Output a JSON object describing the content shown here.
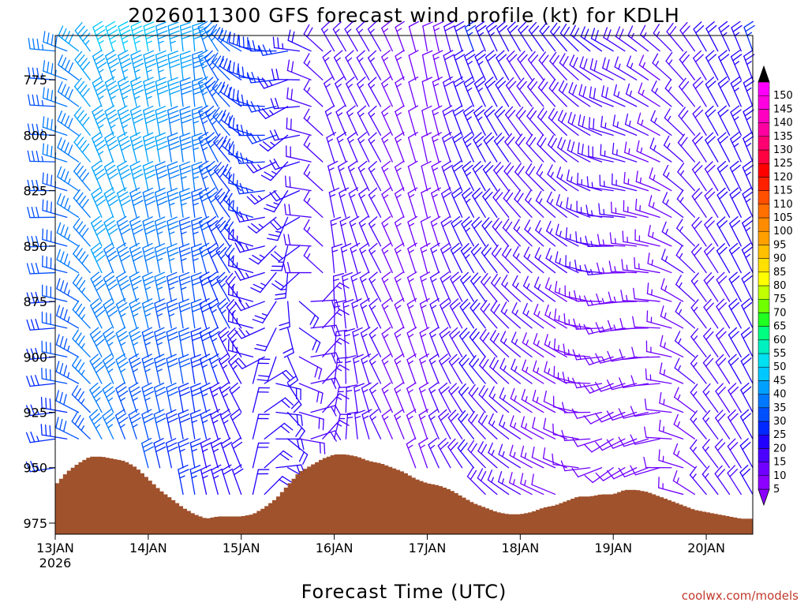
{
  "chart_data": {
    "type": "wind-barb-profile",
    "title": "2026011300 GFS forecast wind profile (kt) for KDLH",
    "xlabel": "Forecast Time (UTC)",
    "ylabel": "",
    "credit": "coolwx.com/models",
    "x_ticks": [
      {
        "label": "13JAN",
        "sub": "2026",
        "t": 0
      },
      {
        "label": "14JAN",
        "sub": "",
        "t": 24
      },
      {
        "label": "15JAN",
        "sub": "",
        "t": 48
      },
      {
        "label": "16JAN",
        "sub": "",
        "t": 72
      },
      {
        "label": "17JAN",
        "sub": "",
        "t": 96
      },
      {
        "label": "18JAN",
        "sub": "",
        "t": 120
      },
      {
        "label": "19JAN",
        "sub": "",
        "t": 144
      },
      {
        "label": "20JAN",
        "sub": "",
        "t": 168
      }
    ],
    "xlim_hours": [
      0,
      180
    ],
    "y_ticks": [
      775,
      800,
      825,
      850,
      875,
      900,
      925,
      950,
      975
    ],
    "ylim_hpa": [
      755,
      980
    ],
    "barb_levels_hpa": [
      762,
      775,
      787,
      800,
      812,
      825,
      837,
      850,
      862,
      875,
      887,
      900,
      912,
      925,
      937,
      950,
      962
    ],
    "time_step_hours": 3,
    "colorbar": {
      "levels": [
        5,
        10,
        15,
        20,
        25,
        30,
        35,
        40,
        45,
        50,
        55,
        60,
        65,
        70,
        75,
        80,
        85,
        90,
        95,
        100,
        105,
        110,
        115,
        120,
        125,
        130,
        135,
        140,
        145,
        150
      ],
      "colors": [
        "#8b00ff",
        "#7000ff",
        "#4b00ff",
        "#2200ff",
        "#0028ff",
        "#0050ff",
        "#0078ff",
        "#00a0ff",
        "#00c8ff",
        "#00e0f0",
        "#00f0c0",
        "#00ff80",
        "#20ff20",
        "#70ff00",
        "#c0ff00",
        "#ffff00",
        "#ffe000",
        "#ffc000",
        "#ffa000",
        "#ff8c00",
        "#ff7000",
        "#ff5000",
        "#ff2000",
        "#ff0000",
        "#ff0040",
        "#ff0070",
        "#ff00a0",
        "#ff00c0",
        "#ff00e0",
        "#ff00ff"
      ],
      "cap_colors": [
        "#8b00ff",
        "#000000"
      ]
    },
    "terrain_color": "#a0522d",
    "surface_pressure": [
      {
        "t": 0,
        "p": 958
      },
      {
        "t": 3,
        "p": 952
      },
      {
        "t": 6,
        "p": 948
      },
      {
        "t": 9,
        "p": 945
      },
      {
        "t": 12,
        "p": 945
      },
      {
        "t": 15,
        "p": 946
      },
      {
        "t": 18,
        "p": 947
      },
      {
        "t": 21,
        "p": 950
      },
      {
        "t": 24,
        "p": 955
      },
      {
        "t": 27,
        "p": 960
      },
      {
        "t": 30,
        "p": 964
      },
      {
        "t": 33,
        "p": 968
      },
      {
        "t": 36,
        "p": 971
      },
      {
        "t": 39,
        "p": 973
      },
      {
        "t": 42,
        "p": 972
      },
      {
        "t": 45,
        "p": 972
      },
      {
        "t": 48,
        "p": 972
      },
      {
        "t": 51,
        "p": 971
      },
      {
        "t": 54,
        "p": 968
      },
      {
        "t": 57,
        "p": 964
      },
      {
        "t": 60,
        "p": 958
      },
      {
        "t": 63,
        "p": 952
      },
      {
        "t": 66,
        "p": 949
      },
      {
        "t": 69,
        "p": 946
      },
      {
        "t": 72,
        "p": 944
      },
      {
        "t": 75,
        "p": 944
      },
      {
        "t": 78,
        "p": 945
      },
      {
        "t": 81,
        "p": 947
      },
      {
        "t": 84,
        "p": 948
      },
      {
        "t": 87,
        "p": 950
      },
      {
        "t": 90,
        "p": 952
      },
      {
        "t": 93,
        "p": 955
      },
      {
        "t": 96,
        "p": 957
      },
      {
        "t": 99,
        "p": 958
      },
      {
        "t": 102,
        "p": 960
      },
      {
        "t": 105,
        "p": 963
      },
      {
        "t": 108,
        "p": 966
      },
      {
        "t": 111,
        "p": 968
      },
      {
        "t": 114,
        "p": 970
      },
      {
        "t": 117,
        "p": 971
      },
      {
        "t": 120,
        "p": 971
      },
      {
        "t": 123,
        "p": 970
      },
      {
        "t": 126,
        "p": 968
      },
      {
        "t": 129,
        "p": 967
      },
      {
        "t": 132,
        "p": 965
      },
      {
        "t": 135,
        "p": 963
      },
      {
        "t": 138,
        "p": 963
      },
      {
        "t": 141,
        "p": 962
      },
      {
        "t": 144,
        "p": 962
      },
      {
        "t": 147,
        "p": 960
      },
      {
        "t": 150,
        "p": 960
      },
      {
        "t": 153,
        "p": 961
      },
      {
        "t": 156,
        "p": 963
      },
      {
        "t": 159,
        "p": 965
      },
      {
        "t": 162,
        "p": 967
      },
      {
        "t": 165,
        "p": 969
      },
      {
        "t": 168,
        "p": 970
      },
      {
        "t": 171,
        "p": 971
      },
      {
        "t": 174,
        "p": 972
      },
      {
        "t": 177,
        "p": 973
      },
      {
        "t": 180,
        "p": 973
      }
    ],
    "wind_keyframes": [
      {
        "t": 0,
        "low": {
          "dir": 260,
          "spd": 25
        },
        "high": {
          "dir": 275,
          "spd": 35
        }
      },
      {
        "t": 12,
        "low": {
          "dir": 330,
          "spd": 35
        },
        "high": {
          "dir": 340,
          "spd": 45
        }
      },
      {
        "t": 24,
        "low": {
          "dir": 345,
          "spd": 30
        },
        "high": {
          "dir": 350,
          "spd": 45
        }
      },
      {
        "t": 36,
        "low": {
          "dir": 350,
          "spd": 25
        },
        "high": {
          "dir": 355,
          "spd": 40
        }
      },
      {
        "t": 48,
        "low": {
          "dir": 340,
          "spd": 20
        },
        "high": {
          "dir": 300,
          "spd": 30
        }
      },
      {
        "t": 60,
        "low": {
          "dir": 110,
          "spd": 20
        },
        "high": {
          "dir": 260,
          "spd": 25
        }
      },
      {
        "t": 72,
        "low": {
          "dir": 20,
          "spd": 15
        },
        "high": {
          "dir": 330,
          "spd": 15
        }
      },
      {
        "t": 84,
        "low": {
          "dir": 335,
          "spd": 15
        },
        "high": {
          "dir": 330,
          "spd": 15
        }
      },
      {
        "t": 96,
        "low": {
          "dir": 340,
          "spd": 15
        },
        "high": {
          "dir": 350,
          "spd": 10
        }
      },
      {
        "t": 108,
        "low": {
          "dir": 320,
          "spd": 20
        },
        "high": {
          "dir": 340,
          "spd": 25
        }
      },
      {
        "t": 120,
        "low": {
          "dir": 300,
          "spd": 15
        },
        "high": {
          "dir": 330,
          "spd": 20
        }
      },
      {
        "t": 132,
        "low": {
          "dir": 290,
          "spd": 10
        },
        "high": {
          "dir": 320,
          "spd": 20
        }
      },
      {
        "t": 144,
        "low": {
          "dir": 230,
          "spd": 10
        },
        "high": {
          "dir": 300,
          "spd": 20
        }
      },
      {
        "t": 156,
        "low": {
          "dir": 250,
          "spd": 10
        },
        "high": {
          "dir": 310,
          "spd": 15
        }
      },
      {
        "t": 168,
        "low": {
          "dir": 320,
          "spd": 15
        },
        "high": {
          "dir": 330,
          "spd": 20
        }
      },
      {
        "t": 180,
        "low": {
          "dir": 330,
          "spd": 20
        },
        "high": {
          "dir": 340,
          "spd": 25
        }
      }
    ],
    "legend_position": "right"
  }
}
